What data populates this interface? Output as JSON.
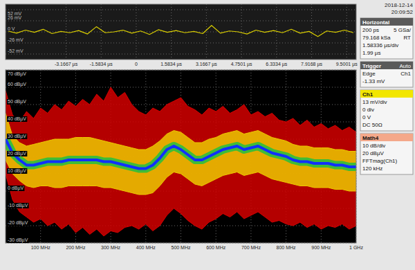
{
  "header": {
    "date": "2018-12-14",
    "time": "20:09:52"
  },
  "chart_data": [
    {
      "type": "line",
      "x": [
        -5.8,
        -5.4,
        -5,
        -4.6,
        -4.2,
        -3.8,
        -3.4,
        -3,
        -2.6,
        -2.2,
        -1.8,
        -1.4,
        -1,
        -0.6,
        -0.2,
        0.2,
        0.6,
        1,
        1.4,
        1.8,
        2.2,
        2.6,
        3,
        3.4,
        3.8,
        4.2,
        4.6,
        5,
        5.4,
        5.8,
        6.2,
        6.6,
        7,
        7.4,
        7.8,
        8.2,
        8.6,
        9,
        9.4,
        9.8
      ],
      "series": [
        {
          "color": "#d8cc00",
          "values": [
            2,
            -3,
            4,
            -1,
            6,
            -4,
            1,
            -2,
            3,
            -5,
            12,
            -2,
            0,
            4,
            -3,
            2,
            -6,
            5,
            -1,
            3,
            -2,
            1,
            -4,
            15,
            -3,
            2,
            0,
            -5,
            4,
            -1,
            3,
            -2,
            6,
            -3,
            1,
            -11,
            2,
            -1,
            4,
            -2
          ]
        }
      ],
      "xlim": [
        -5.9,
        9.93
      ],
      "xticks": [
        {
          "value": -3.1667,
          "label": "-3.1667 µs"
        },
        {
          "value": -1.5834,
          "label": "-1.5834 µs"
        },
        0,
        {
          "value": 1.5834,
          "label": "1.5834 µs"
        },
        {
          "value": 3.1667,
          "label": "3.1667 µs"
        },
        {
          "value": 4.7501,
          "label": "4.7501 µs"
        },
        {
          "value": 6.3334,
          "label": "6.3334 µs"
        },
        {
          "value": 7.9168,
          "label": "7.9168 µs"
        },
        {
          "value": 9.5001,
          "label": "9.5001 µs"
        }
      ],
      "ylim": [
        -65,
        65
      ],
      "yticks": [
        {
          "value": 52,
          "label": "52 mV"
        },
        {
          "value": 26,
          "label": "26 mV"
        },
        {
          "value": 0,
          "label": "0 V"
        },
        {
          "value": -26,
          "label": "-26 mV"
        },
        {
          "value": -52,
          "label": "-52 mV"
        }
      ],
      "grid": true
    },
    {
      "type": "area",
      "x": [
        0,
        20,
        40,
        60,
        80,
        100,
        120,
        140,
        160,
        180,
        200,
        220,
        240,
        260,
        280,
        300,
        320,
        340,
        360,
        380,
        400,
        420,
        440,
        460,
        480,
        500,
        520,
        540,
        560,
        580,
        600,
        620,
        640,
        660,
        680,
        700,
        720,
        740,
        760,
        780,
        800,
        820,
        840,
        860,
        880,
        900,
        920,
        940,
        960,
        980,
        1000
      ],
      "series": [
        {
          "color": "#d40000",
          "values": [
            58,
            44,
            40,
            46,
            42,
            48,
            45,
            50,
            47,
            52,
            49,
            53,
            50,
            56,
            52,
            60,
            54,
            57,
            50,
            46,
            44,
            48,
            46,
            50,
            52,
            54,
            49,
            47,
            44,
            48,
            46,
            49,
            45,
            47,
            50,
            44,
            46,
            43,
            45,
            41,
            40,
            42,
            38,
            41,
            37,
            39,
            36,
            38,
            35,
            37,
            34
          ]
        },
        {
          "color": "#ecc800",
          "values": [
            45,
            32,
            28,
            26,
            27,
            28,
            29,
            30,
            30,
            30,
            31,
            31,
            31,
            30,
            29,
            28,
            27,
            26,
            25,
            24,
            24,
            26,
            29,
            33,
            35,
            34,
            31,
            28,
            28,
            30,
            31,
            33,
            34,
            35,
            33,
            34,
            35,
            33,
            31,
            30,
            29,
            27,
            26,
            26,
            25,
            25,
            25,
            24,
            24,
            23,
            23
          ]
        },
        {
          "color": "#1030ff",
          "values": [
            30,
            22,
            18,
            15,
            15,
            16,
            17,
            17,
            17,
            18,
            18,
            18,
            18,
            18,
            17,
            17,
            16,
            15,
            14,
            13,
            13,
            15,
            19,
            24,
            26,
            24,
            21,
            18,
            18,
            20,
            22,
            24,
            25,
            26,
            24,
            25,
            26,
            24,
            22,
            21,
            20,
            18,
            17,
            17,
            16,
            16,
            16,
            15,
            15,
            14,
            14
          ]
        },
        {
          "color": "#ecc800",
          "values": [
            18,
            10,
            6,
            3,
            2,
            3,
            3,
            2,
            2,
            3,
            3,
            3,
            3,
            3,
            2,
            2,
            1,
            0,
            -1,
            -2,
            -2,
            -1,
            3,
            8,
            11,
            10,
            7,
            4,
            3,
            5,
            7,
            9,
            10,
            11,
            9,
            10,
            11,
            9,
            7,
            6,
            5,
            4,
            3,
            3,
            2,
            2,
            2,
            1,
            1,
            0,
            0
          ]
        },
        {
          "color": "#d40000",
          "values": [
            10,
            -5,
            -12,
            -15,
            -18,
            -16,
            -20,
            -18,
            -22,
            -19,
            -24,
            -21,
            -25,
            -22,
            -26,
            -23,
            -24,
            -21,
            -20,
            -22,
            -19,
            -23,
            -20,
            -14,
            -10,
            -13,
            -17,
            -20,
            -22,
            -18,
            -16,
            -13,
            -15,
            -12,
            -16,
            -14,
            -12,
            -15,
            -18,
            -17,
            -19,
            -20,
            -18,
            -21,
            -19,
            -22,
            -20,
            -21,
            -19,
            -22,
            -20
          ]
        }
      ],
      "xlim": [
        0,
        1000
      ],
      "xticks": [
        {
          "value": 100,
          "label": "100 MHz"
        },
        {
          "value": 200,
          "label": "200 MHz"
        },
        {
          "value": 300,
          "label": "300 MHz"
        },
        {
          "value": 400,
          "label": "400 MHz"
        },
        {
          "value": 500,
          "label": "500 MHz"
        },
        {
          "value": 600,
          "label": "600 MHz"
        },
        {
          "value": 700,
          "label": "700 MHz"
        },
        {
          "value": 800,
          "label": "800 MHz"
        },
        {
          "value": 900,
          "label": "900 MHz"
        },
        {
          "value": 1000,
          "label": "1 GHz"
        }
      ],
      "ylim": [
        -30,
        70
      ],
      "yticks": [
        {
          "value": 70,
          "label": "70 dBµV"
        },
        {
          "value": 60,
          "label": "60 dBµV"
        },
        {
          "value": 50,
          "label": "50 dBµV"
        },
        {
          "value": 40,
          "label": "40 dBµV"
        },
        {
          "value": 30,
          "label": "30 dBµV"
        },
        {
          "value": 20,
          "label": "20 dBµV"
        },
        {
          "value": 10,
          "label": "10 dBµV"
        },
        {
          "value": 0,
          "label": "0 dBµV"
        },
        {
          "value": -10,
          "label": "-10 dBµV"
        },
        {
          "value": -20,
          "label": "-20 dBµV"
        },
        {
          "value": -30,
          "label": "-30 dBµV"
        }
      ],
      "grid": true
    }
  ],
  "sidebar": {
    "horizontal": {
      "title": "Horizontal",
      "rows": [
        [
          "200 ps",
          "5 GSa/"
        ],
        [
          "79.168 kSa",
          "RT"
        ],
        [
          "1.58336 µs/div"
        ],
        [
          "1.99 µs"
        ]
      ]
    },
    "trigger": {
      "title": "Trigger",
      "status": "Auto",
      "rows": [
        [
          "Edge",
          "Ch1"
        ],
        [
          "-1.33 mV"
        ]
      ]
    },
    "channel": {
      "title": "Ch1",
      "rows": [
        [
          "13 mV/div"
        ],
        [
          "0 div"
        ],
        [
          "0 V"
        ],
        [
          "DC 50Ω"
        ]
      ]
    },
    "math": {
      "title": "Math4",
      "rows": [
        [
          "10 dB/div"
        ],
        [
          "20 dBµV"
        ],
        [
          "FFTmag(Ch1)"
        ],
        [
          "120 kHz"
        ]
      ]
    }
  }
}
